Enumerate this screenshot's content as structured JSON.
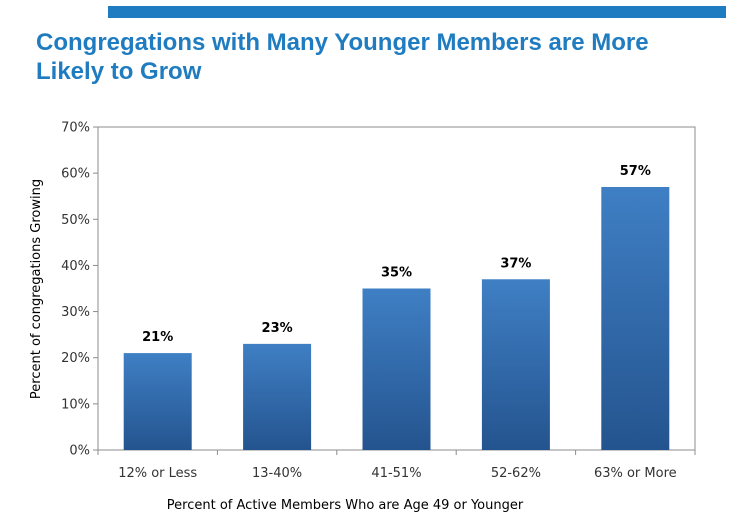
{
  "header": {
    "title": "Congregations with Many Younger Members are More Likely to Grow"
  },
  "colors": {
    "accent": "#1f7cc0",
    "bar_top": "#3f7fc4",
    "bar_bottom": "#24548f"
  },
  "chart_data": {
    "type": "bar",
    "categories": [
      "12% or Less",
      "13-40%",
      "41-51%",
      "52-62%",
      "63% or More"
    ],
    "values": [
      21,
      23,
      35,
      37,
      57
    ],
    "data_labels": [
      "21%",
      "23%",
      "35%",
      "37%",
      "57%"
    ],
    "xlabel": "Percent of Active Members Who are Age 49 or Younger",
    "ylabel": "Percent of congregations Growing",
    "ylim": [
      0,
      70
    ],
    "yticks": [
      0,
      10,
      20,
      30,
      40,
      50,
      60,
      70
    ],
    "ytick_labels": [
      "0%",
      "10%",
      "20%",
      "30%",
      "40%",
      "50%",
      "60%",
      "70%"
    ],
    "grid": false,
    "legend": "none"
  }
}
